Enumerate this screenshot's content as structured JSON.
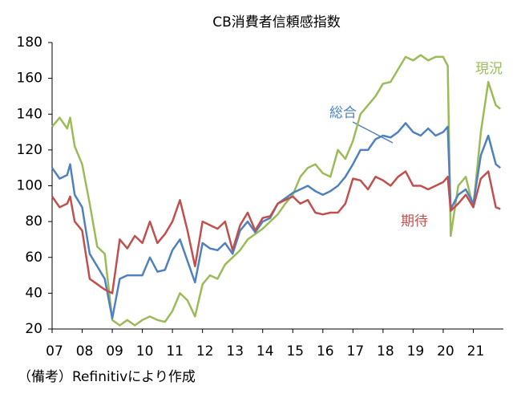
{
  "chart_data": {
    "type": "line",
    "title": "CB消費者信頼感指数",
    "note": "（備考）Refinitivにより作成",
    "x": [
      2007,
      2007.25,
      2007.5,
      2007.6,
      2007.75,
      2008,
      2008.25,
      2008.5,
      2008.75,
      2009,
      2009.25,
      2009.5,
      2009.75,
      2010,
      2010.25,
      2010.5,
      2010.75,
      2011,
      2011.25,
      2011.5,
      2011.75,
      2012,
      2012.25,
      2012.5,
      2012.75,
      2013,
      2013.25,
      2013.5,
      2013.75,
      2014,
      2014.25,
      2014.5,
      2014.75,
      2015,
      2015.25,
      2015.5,
      2015.75,
      2016,
      2016.25,
      2016.5,
      2016.75,
      2017,
      2017.25,
      2017.5,
      2017.75,
      2018,
      2018.25,
      2018.5,
      2018.75,
      2019,
      2019.25,
      2019.5,
      2019.75,
      2020,
      2020.15,
      2020.25,
      2020.5,
      2020.75,
      2021,
      2021.25,
      2021.5,
      2021.75,
      2021.9
    ],
    "series": [
      {
        "name": "現況",
        "color": "#9bbb59",
        "values": [
          133,
          138,
          132,
          138,
          122,
          112,
          90,
          66,
          62,
          25,
          22,
          25,
          22,
          25,
          27,
          25,
          24,
          30,
          40,
          36,
          27,
          45,
          50,
          48,
          56,
          60,
          64,
          70,
          73,
          76,
          80,
          84,
          90,
          95,
          105,
          110,
          112,
          107,
          105,
          120,
          115,
          125,
          140,
          145,
          150,
          157,
          158,
          165,
          172,
          170,
          173,
          170,
          172,
          172,
          167,
          72,
          100,
          105,
          88,
          130,
          158,
          145,
          143
        ]
      },
      {
        "name": "総合",
        "color": "#4f81bd",
        "values": [
          110,
          104,
          106,
          112,
          95,
          88,
          62,
          55,
          48,
          26,
          48,
          50,
          50,
          50,
          60,
          52,
          53,
          64,
          70,
          58,
          46,
          68,
          65,
          64,
          68,
          62,
          75,
          80,
          74,
          80,
          82,
          90,
          93,
          96,
          98,
          100,
          97,
          95,
          97,
          100,
          105,
          112,
          120,
          120,
          126,
          128,
          127,
          130,
          135,
          130,
          128,
          132,
          128,
          130,
          133,
          87,
          95,
          98,
          90,
          117,
          128,
          112,
          110
        ]
      },
      {
        "name": "期待",
        "color": "#c0504d",
        "values": [
          94,
          88,
          90,
          94,
          80,
          75,
          48,
          45,
          42,
          40,
          70,
          65,
          72,
          68,
          80,
          68,
          73,
          80,
          92,
          75,
          55,
          80,
          78,
          76,
          80,
          64,
          78,
          85,
          75,
          82,
          83,
          90,
          92,
          94,
          90,
          92,
          85,
          84,
          85,
          85,
          90,
          104,
          103,
          98,
          105,
          103,
          100,
          105,
          108,
          100,
          100,
          98,
          100,
          102,
          105,
          86,
          90,
          95,
          88,
          104,
          108,
          88,
          87
        ]
      }
    ],
    "xlim": [
      2007,
      2022
    ],
    "xticks": [
      {
        "value": 2007,
        "label": "07"
      },
      {
        "value": 2008,
        "label": "08"
      },
      {
        "value": 2009,
        "label": "09"
      },
      {
        "value": 2010,
        "label": "10"
      },
      {
        "value": 2011,
        "label": "11"
      },
      {
        "value": 2012,
        "label": "12"
      },
      {
        "value": 2013,
        "label": "13"
      },
      {
        "value": 2014,
        "label": "14"
      },
      {
        "value": 2015,
        "label": "15"
      },
      {
        "value": 2016,
        "label": "16"
      },
      {
        "value": 2017,
        "label": "17"
      },
      {
        "value": 2018,
        "label": "18"
      },
      {
        "value": 2019,
        "label": "19"
      },
      {
        "value": 2020,
        "label": "20"
      },
      {
        "value": 2021,
        "label": "21"
      }
    ],
    "ylim": [
      20,
      180
    ],
    "yticks": [
      20,
      40,
      60,
      80,
      100,
      120,
      140,
      160,
      180
    ]
  }
}
